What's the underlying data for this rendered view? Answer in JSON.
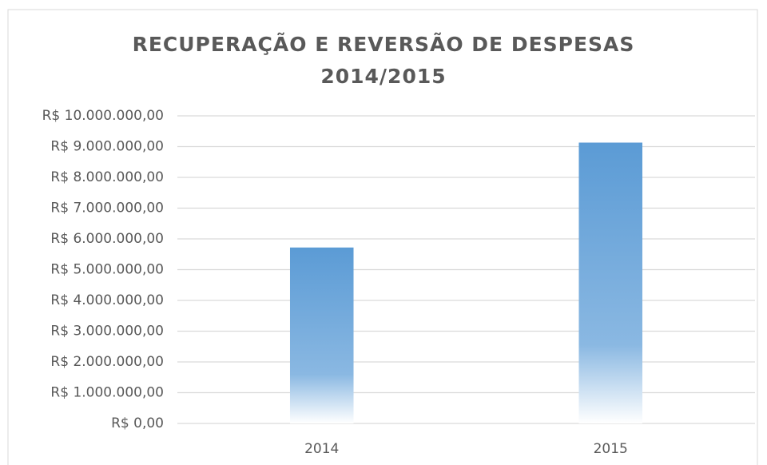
{
  "chart_data": {
    "type": "bar",
    "title": [
      "RECUPERAÇÃO E REVERSÃO DE DESPESAS",
      "2014/2015"
    ],
    "categories": [
      "2014",
      "2015"
    ],
    "values": [
      5720000,
      9130000
    ],
    "color": "#5b9bd5",
    "ylim": [
      0,
      10000000
    ],
    "yticks": [
      {
        "value": 0,
        "label": "R$ 0,00"
      },
      {
        "value": 1000000,
        "label": "R$ 1.000.000,00"
      },
      {
        "value": 2000000,
        "label": "R$ 2.000.000,00"
      },
      {
        "value": 3000000,
        "label": "R$ 3.000.000,00"
      },
      {
        "value": 4000000,
        "label": "R$ 4.000.000,00"
      },
      {
        "value": 5000000,
        "label": "R$ 5.000.000,00"
      },
      {
        "value": 6000000,
        "label": "R$ 6.000.000,00"
      },
      {
        "value": 7000000,
        "label": "R$ 7.000.000,00"
      },
      {
        "value": 8000000,
        "label": "R$ 8.000.000,00"
      },
      {
        "value": 9000000,
        "label": "R$ 9.000.000,00"
      },
      {
        "value": 10000000,
        "label": "R$ 10.000.000,00"
      }
    ],
    "grid": true
  }
}
